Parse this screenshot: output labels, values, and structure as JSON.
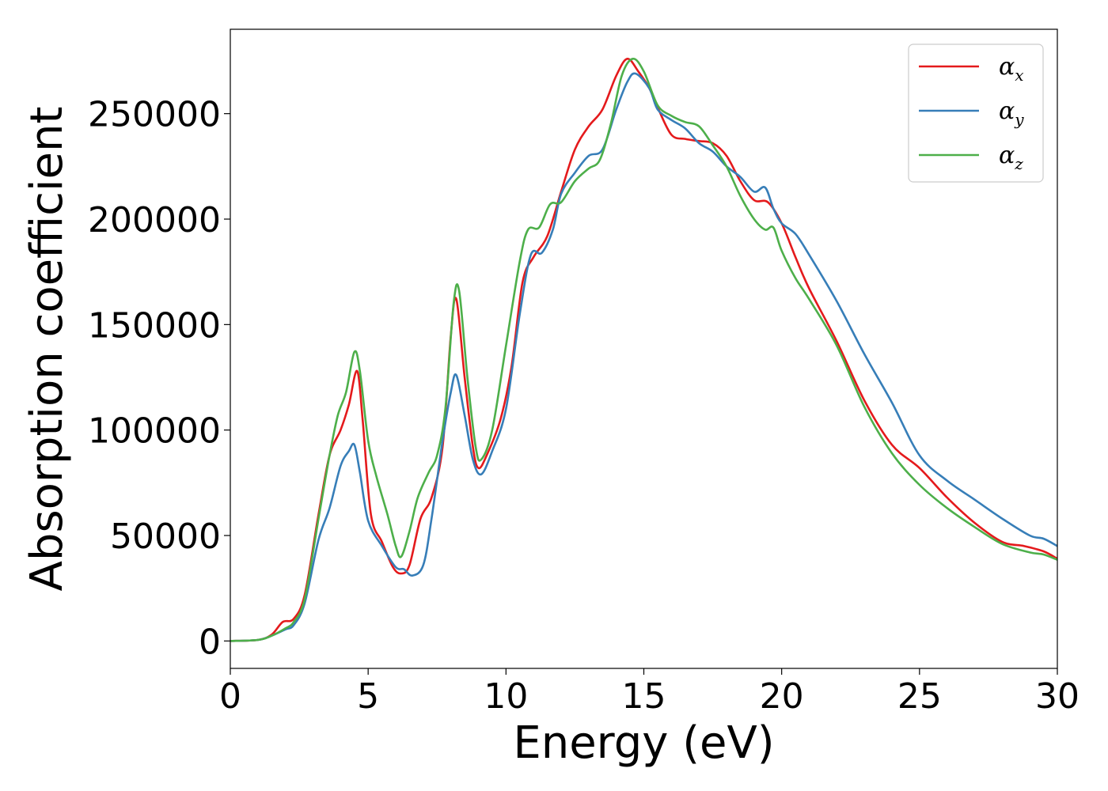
{
  "chart_data": {
    "type": "line",
    "title": "",
    "xlabel": "Energy (eV)",
    "ylabel": "Absorption coefficient",
    "xlim": [
      0,
      30
    ],
    "ylim": [
      -13000,
      290000
    ],
    "x_ticks": [
      0,
      5,
      10,
      15,
      20,
      25,
      30
    ],
    "y_ticks": [
      0,
      50000,
      100000,
      150000,
      200000,
      250000
    ],
    "grid": false,
    "legend_position": "top-right",
    "series": [
      {
        "name": "αx",
        "symbol": "α",
        "subscript": "x",
        "color": "#e41a1c",
        "points": [
          [
            0,
            0
          ],
          [
            1,
            500
          ],
          [
            1.5,
            3000
          ],
          [
            1.9,
            9000
          ],
          [
            2.3,
            10500
          ],
          [
            2.7,
            22000
          ],
          [
            3.2,
            60000
          ],
          [
            3.6,
            88000
          ],
          [
            4,
            100000
          ],
          [
            4.3,
            112000
          ],
          [
            4.6,
            128000
          ],
          [
            4.8,
            105000
          ],
          [
            5.1,
            60000
          ],
          [
            5.5,
            47000
          ],
          [
            5.9,
            35000
          ],
          [
            6.2,
            32000
          ],
          [
            6.5,
            36000
          ],
          [
            6.9,
            58000
          ],
          [
            7.3,
            68000
          ],
          [
            7.7,
            92000
          ],
          [
            8,
            145000
          ],
          [
            8.2,
            162000
          ],
          [
            8.5,
            125000
          ],
          [
            8.8,
            92000
          ],
          [
            9,
            82000
          ],
          [
            9.3,
            88000
          ],
          [
            9.8,
            105000
          ],
          [
            10.2,
            130000
          ],
          [
            10.6,
            170000
          ],
          [
            11,
            182000
          ],
          [
            11.5,
            192000
          ],
          [
            12,
            213000
          ],
          [
            12.5,
            233000
          ],
          [
            13,
            244000
          ],
          [
            13.5,
            252000
          ],
          [
            14,
            268000
          ],
          [
            14.4,
            276000
          ],
          [
            14.8,
            270000
          ],
          [
            15.2,
            262000
          ],
          [
            15.5,
            253000
          ],
          [
            16,
            240000
          ],
          [
            16.5,
            238000
          ],
          [
            17,
            237000
          ],
          [
            17.5,
            236000
          ],
          [
            18,
            230000
          ],
          [
            18.5,
            218000
          ],
          [
            19,
            209000
          ],
          [
            19.5,
            208000
          ],
          [
            20,
            198000
          ],
          [
            20.5,
            182000
          ],
          [
            21,
            167000
          ],
          [
            22,
            142000
          ],
          [
            23,
            114000
          ],
          [
            24,
            93000
          ],
          [
            25,
            82000
          ],
          [
            26,
            68000
          ],
          [
            27,
            56000
          ],
          [
            28,
            47000
          ],
          [
            28.8,
            45000
          ],
          [
            29.5,
            42500
          ],
          [
            30,
            39000
          ]
        ]
      },
      {
        "name": "αy",
        "symbol": "α",
        "subscript": "y",
        "color": "#377eb8",
        "points": [
          [
            0,
            0
          ],
          [
            1,
            500
          ],
          [
            1.5,
            2500
          ],
          [
            2,
            5500
          ],
          [
            2.3,
            7500
          ],
          [
            2.7,
            18000
          ],
          [
            3.2,
            48000
          ],
          [
            3.6,
            63000
          ],
          [
            4,
            83000
          ],
          [
            4.3,
            90000
          ],
          [
            4.5,
            93000
          ],
          [
            4.7,
            80000
          ],
          [
            5,
            57000
          ],
          [
            5.5,
            45000
          ],
          [
            6,
            35000
          ],
          [
            6.3,
            34000
          ],
          [
            6.6,
            31000
          ],
          [
            7,
            36000
          ],
          [
            7.3,
            58000
          ],
          [
            7.7,
            95000
          ],
          [
            8,
            118000
          ],
          [
            8.2,
            126000
          ],
          [
            8.5,
            107000
          ],
          [
            8.8,
            86000
          ],
          [
            9.1,
            79000
          ],
          [
            9.5,
            90000
          ],
          [
            10,
            110000
          ],
          [
            10.5,
            155000
          ],
          [
            10.9,
            183000
          ],
          [
            11.3,
            184000
          ],
          [
            11.7,
            195000
          ],
          [
            12,
            212000
          ],
          [
            12.5,
            222000
          ],
          [
            13,
            230000
          ],
          [
            13.5,
            233000
          ],
          [
            14,
            252000
          ],
          [
            14.4,
            265000
          ],
          [
            14.7,
            269000
          ],
          [
            15.2,
            262000
          ],
          [
            15.5,
            252000
          ],
          [
            16,
            247000
          ],
          [
            16.5,
            243000
          ],
          [
            17,
            236000
          ],
          [
            17.5,
            232000
          ],
          [
            18,
            225000
          ],
          [
            18.5,
            220000
          ],
          [
            19,
            213000
          ],
          [
            19.4,
            215000
          ],
          [
            19.7,
            205000
          ],
          [
            20,
            198000
          ],
          [
            20.5,
            193000
          ],
          [
            21,
            183000
          ],
          [
            22,
            161000
          ],
          [
            23,
            136000
          ],
          [
            24,
            113000
          ],
          [
            25,
            88000
          ],
          [
            26,
            76000
          ],
          [
            27,
            67000
          ],
          [
            28,
            58000
          ],
          [
            29,
            50000
          ],
          [
            29.5,
            48500
          ],
          [
            30,
            45000
          ]
        ]
      },
      {
        "name": "αz",
        "symbol": "α",
        "subscript": "z",
        "color": "#4daf4a",
        "points": [
          [
            0,
            0
          ],
          [
            1,
            500
          ],
          [
            1.5,
            2500
          ],
          [
            2,
            6000
          ],
          [
            2.3,
            9000
          ],
          [
            2.7,
            20000
          ],
          [
            3.2,
            58000
          ],
          [
            3.6,
            88000
          ],
          [
            3.9,
            107000
          ],
          [
            4.2,
            118000
          ],
          [
            4.5,
            137000
          ],
          [
            4.7,
            128000
          ],
          [
            5,
            95000
          ],
          [
            5.3,
            78000
          ],
          [
            5.7,
            60000
          ],
          [
            6,
            45000
          ],
          [
            6.2,
            40000
          ],
          [
            6.5,
            52000
          ],
          [
            6.8,
            68000
          ],
          [
            7.2,
            80000
          ],
          [
            7.5,
            88000
          ],
          [
            7.8,
            110000
          ],
          [
            8.1,
            160000
          ],
          [
            8.3,
            166000
          ],
          [
            8.6,
            125000
          ],
          [
            8.9,
            92000
          ],
          [
            9.1,
            86000
          ],
          [
            9.5,
            100000
          ],
          [
            10,
            140000
          ],
          [
            10.5,
            180000
          ],
          [
            10.8,
            195000
          ],
          [
            11.2,
            196000
          ],
          [
            11.6,
            207000
          ],
          [
            12,
            208000
          ],
          [
            12.5,
            218000
          ],
          [
            13,
            224000
          ],
          [
            13.4,
            228000
          ],
          [
            13.8,
            245000
          ],
          [
            14.2,
            268000
          ],
          [
            14.6,
            276000
          ],
          [
            15,
            270000
          ],
          [
            15.5,
            254000
          ],
          [
            16,
            249000
          ],
          [
            16.5,
            246000
          ],
          [
            17,
            244000
          ],
          [
            17.5,
            235000
          ],
          [
            18,
            225000
          ],
          [
            18.5,
            211000
          ],
          [
            19,
            200000
          ],
          [
            19.4,
            195000
          ],
          [
            19.7,
            196000
          ],
          [
            20,
            185000
          ],
          [
            20.5,
            172000
          ],
          [
            21,
            162000
          ],
          [
            22,
            140000
          ],
          [
            23,
            111000
          ],
          [
            24,
            89000
          ],
          [
            25,
            74000
          ],
          [
            26,
            63000
          ],
          [
            27,
            54000
          ],
          [
            28,
            46000
          ],
          [
            29,
            42000
          ],
          [
            29.5,
            41000
          ],
          [
            30,
            38500
          ]
        ]
      }
    ]
  }
}
